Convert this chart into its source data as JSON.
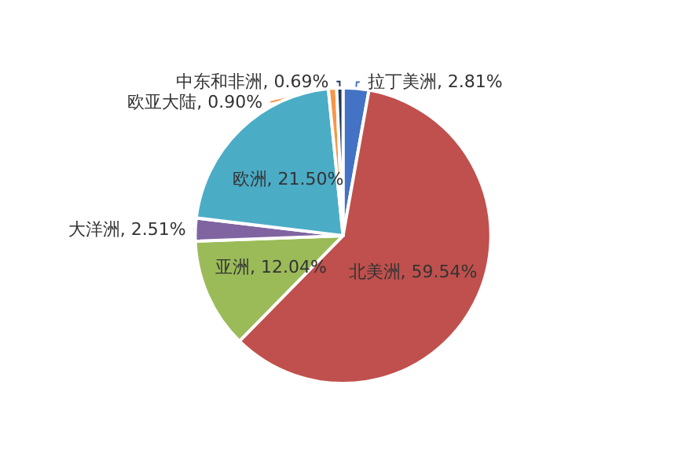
{
  "chart_data": {
    "type": "pie",
    "categories": [
      "拉丁美洲",
      "北美洲",
      "亚洲",
      "大洋洲",
      "欧洲",
      "欧亚大陆",
      "中东和非洲"
    ],
    "values": [
      2.81,
      59.54,
      12.04,
      2.51,
      21.5,
      0.9,
      0.69
    ],
    "value_labels": [
      "2.81%",
      "59.54%",
      "12.04%",
      "2.51%",
      "21.50%",
      "0.90%",
      "0.69%"
    ],
    "colors": [
      "#4472c4",
      "#c0504d",
      "#9bbb59",
      "#8064a2",
      "#4bacc6",
      "#f79646",
      "#1f3864"
    ],
    "legend": false
  }
}
